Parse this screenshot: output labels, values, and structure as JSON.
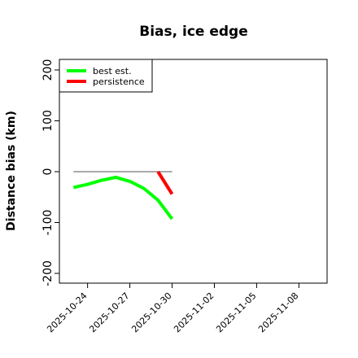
{
  "chart_data": {
    "type": "line",
    "title": "Bias, ice edge",
    "xlabel": "",
    "ylabel": "Distance bias (km)",
    "ylim": [
      -200,
      200
    ],
    "xlim": [
      "2025-10-22",
      "2025-11-10"
    ],
    "yticks": [
      -200,
      -100,
      0,
      100,
      200
    ],
    "ytick_labels": [
      "-200",
      "-100",
      "0",
      "100",
      "200"
    ],
    "xticks": [
      "2025-10-24",
      "2025-10-27",
      "2025-10-30",
      "2025-11-02",
      "2025-11-05",
      "2025-11-08"
    ],
    "xtick_labels": [
      "2025-10-24",
      "2025-10-27",
      "2025-10-30",
      "2025-11-02",
      "2025-11-05",
      "2025-11-08"
    ],
    "zero_line": {
      "x": [
        "2025-10-23",
        "2025-10-30"
      ],
      "y": 0,
      "color": "#777777"
    },
    "grid": false,
    "legend_position": "top-left",
    "series": [
      {
        "name": "best est.",
        "color": "#00ff00",
        "x": [
          "2025-10-23",
          "2025-10-24",
          "2025-10-25",
          "2025-10-26",
          "2025-10-27",
          "2025-10-28",
          "2025-10-29",
          "2025-10-30"
        ],
        "y": [
          -31,
          -25,
          -17,
          -11,
          -19,
          -33,
          -56,
          -93
        ]
      },
      {
        "name": "persistence",
        "color": "#ff0000",
        "x": [
          "2025-10-29",
          "2025-10-30"
        ],
        "y": [
          0,
          -44
        ]
      }
    ]
  }
}
